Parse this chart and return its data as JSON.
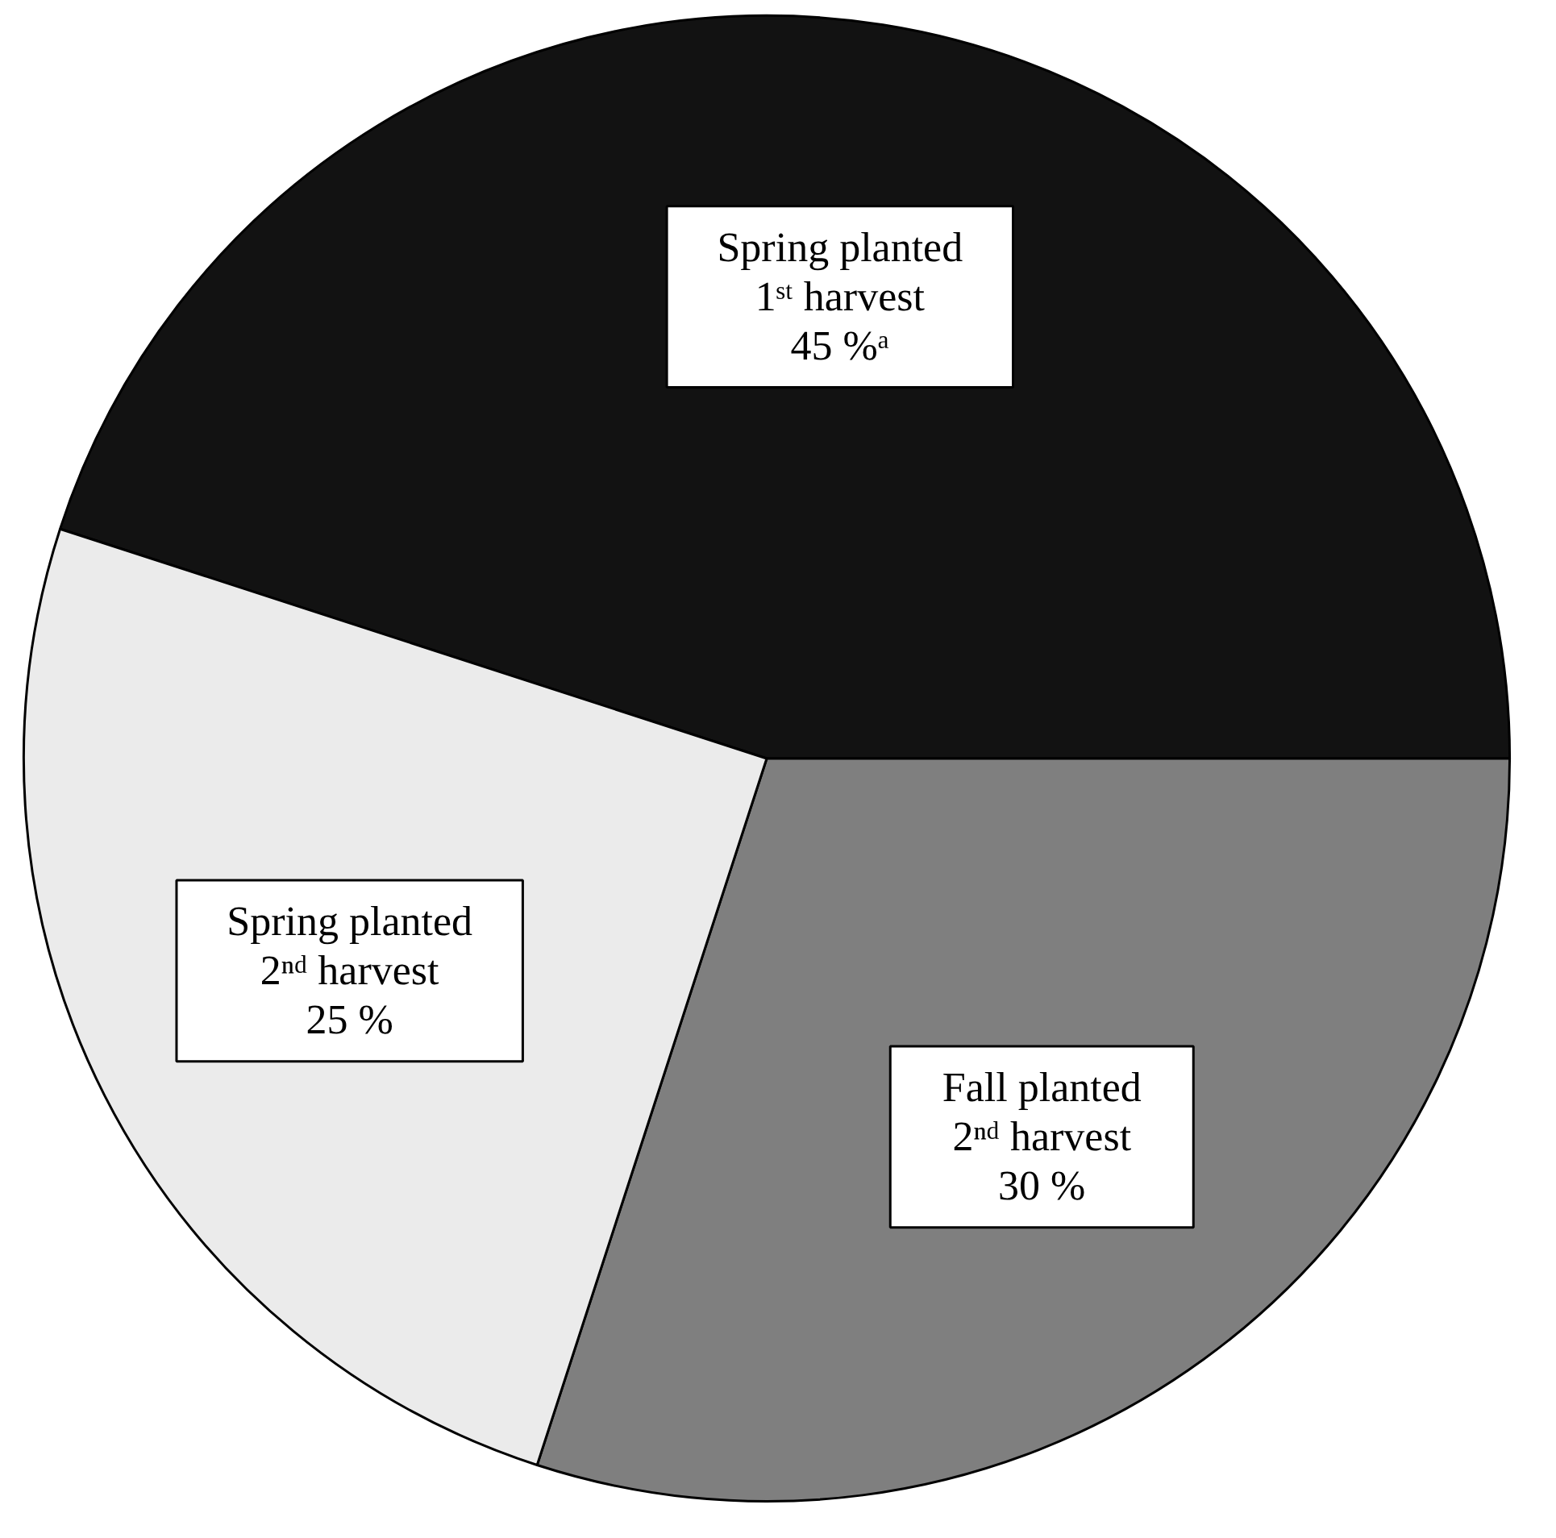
{
  "chart_data": {
    "type": "pie",
    "categories": [
      "Spring planted\n1ˢᵗ harvest",
      "Fall planted\n2ⁿᵈ harvest",
      "Spring planted\n2ⁿᵈ harvest"
    ],
    "values": [
      45,
      30,
      25
    ],
    "value_labels": [
      "45 %ᵃ",
      "30 %",
      "25 %"
    ],
    "colors": [
      "#121212",
      "#7f7f7f",
      "#ebebeb"
    ]
  }
}
